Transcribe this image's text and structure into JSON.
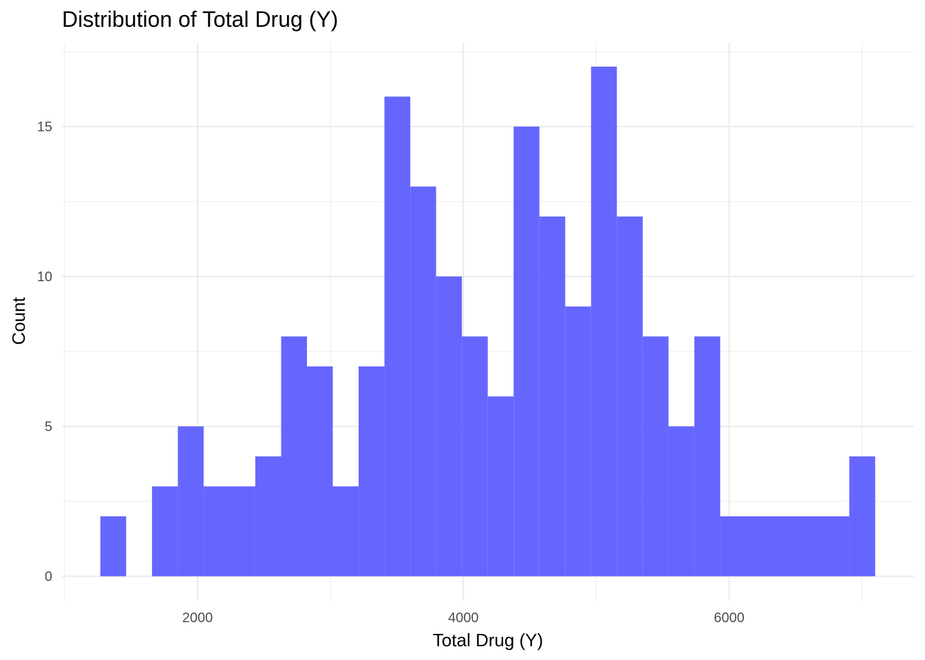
{
  "chart_data": {
    "type": "bar",
    "title": "Distribution of Total Drug (Y)",
    "xlabel": "Total Drug (Y)",
    "ylabel": "Count",
    "bin_width": 194.3,
    "bins": [
      {
        "x0": 1268.9,
        "count": 2
      },
      {
        "x0": 1463.2,
        "count": 0
      },
      {
        "x0": 1657.5,
        "count": 3
      },
      {
        "x0": 1851.8,
        "count": 5
      },
      {
        "x0": 2046.1,
        "count": 3
      },
      {
        "x0": 2240.4,
        "count": 3
      },
      {
        "x0": 2434.7,
        "count": 4
      },
      {
        "x0": 2629.0,
        "count": 8
      },
      {
        "x0": 2823.3,
        "count": 7
      },
      {
        "x0": 3017.6,
        "count": 3
      },
      {
        "x0": 3211.9,
        "count": 7
      },
      {
        "x0": 3406.2,
        "count": 16
      },
      {
        "x0": 3600.5,
        "count": 13
      },
      {
        "x0": 3794.8,
        "count": 10
      },
      {
        "x0": 3989.1,
        "count": 8
      },
      {
        "x0": 4183.4,
        "count": 6
      },
      {
        "x0": 4377.7,
        "count": 15
      },
      {
        "x0": 4572.0,
        "count": 12
      },
      {
        "x0": 4766.3,
        "count": 9
      },
      {
        "x0": 4960.6,
        "count": 17
      },
      {
        "x0": 5154.9,
        "count": 12
      },
      {
        "x0": 5349.2,
        "count": 8
      },
      {
        "x0": 5543.5,
        "count": 5
      },
      {
        "x0": 5737.8,
        "count": 8
      },
      {
        "x0": 5932.1,
        "count": 2
      },
      {
        "x0": 6126.4,
        "count": 2
      },
      {
        "x0": 6320.7,
        "count": 2
      },
      {
        "x0": 6515.0,
        "count": 2
      },
      {
        "x0": 6709.3,
        "count": 2
      },
      {
        "x0": 6903.6,
        "count": 4
      }
    ],
    "xlim": [
      980,
      7390
    ],
    "ylim": [
      -0.82,
      17.8
    ],
    "x_ticks": [
      2000,
      4000,
      6000
    ],
    "x_tick_labels": [
      "2000",
      "4000",
      "6000"
    ],
    "y_ticks": [
      0,
      5,
      10,
      15
    ],
    "y_tick_labels": [
      "0",
      "5",
      "10",
      "15"
    ],
    "bar_color": "#6666FF",
    "grid_color": "#EBEBEB",
    "grid": true,
    "legend": "none"
  }
}
